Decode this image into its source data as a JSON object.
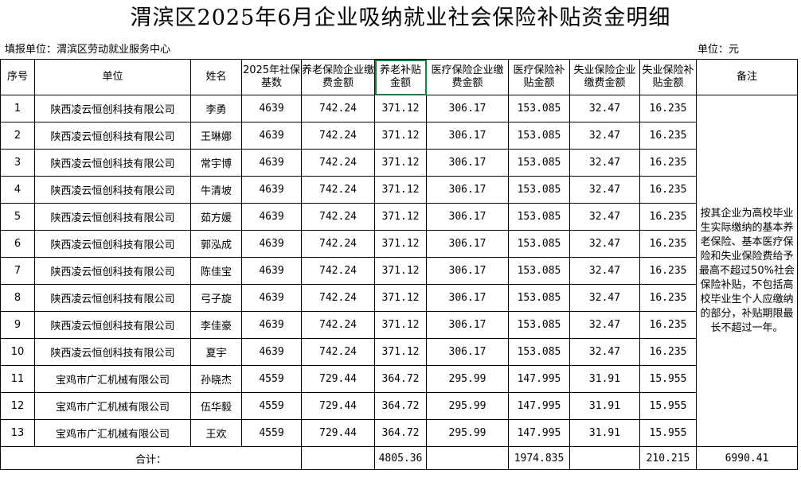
{
  "title": "渭滨区2025年6月企业吸纳就业社会保险补贴资金明细",
  "reporting_unit": "填报单位：渭滨区劳动就业服务中心",
  "unit_label": "单位：元",
  "headers": {
    "seq": "序号",
    "company": "单位",
    "name": "姓名",
    "base": "2025年社保基数",
    "pension_pay": "养老保险企业缴费金额",
    "pension_sub": "养老补贴金额",
    "medical_pay": "医疗保险企业缴费金额",
    "medical_sub": "医疗保险补贴金额",
    "unemp_pay": "失业保险企业缴费金额",
    "unemp_sub": "失业保险补贴金额",
    "remark": "备注"
  },
  "rows": [
    {
      "seq": "1",
      "company": "陕西凌云恒创科技有限公司",
      "name": "李勇",
      "base": "4639",
      "pension_pay": "742.24",
      "pension_sub": "371.12",
      "medical_pay": "306.17",
      "medical_sub": "153.085",
      "unemp_pay": "32.47",
      "unemp_sub": "16.235"
    },
    {
      "seq": "2",
      "company": "陕西凌云恒创科技有限公司",
      "name": "王琳娜",
      "base": "4639",
      "pension_pay": "742.24",
      "pension_sub": "371.12",
      "medical_pay": "306.17",
      "medical_sub": "153.085",
      "unemp_pay": "32.47",
      "unemp_sub": "16.235"
    },
    {
      "seq": "3",
      "company": "陕西凌云恒创科技有限公司",
      "name": "常宇博",
      "base": "4639",
      "pension_pay": "742.24",
      "pension_sub": "371.12",
      "medical_pay": "306.17",
      "medical_sub": "153.085",
      "unemp_pay": "32.47",
      "unemp_sub": "16.235"
    },
    {
      "seq": "4",
      "company": "陕西凌云恒创科技有限公司",
      "name": "牛清坡",
      "base": "4639",
      "pension_pay": "742.24",
      "pension_sub": "371.12",
      "medical_pay": "306.17",
      "medical_sub": "153.085",
      "unemp_pay": "32.47",
      "unemp_sub": "16.235"
    },
    {
      "seq": "5",
      "company": "陕西凌云恒创科技有限公司",
      "name": "茹方媛",
      "base": "4639",
      "pension_pay": "742.24",
      "pension_sub": "371.12",
      "medical_pay": "306.17",
      "medical_sub": "153.085",
      "unemp_pay": "32.47",
      "unemp_sub": "16.235"
    },
    {
      "seq": "6",
      "company": "陕西凌云恒创科技有限公司",
      "name": "郭泓成",
      "base": "4639",
      "pension_pay": "742.24",
      "pension_sub": "371.12",
      "medical_pay": "306.17",
      "medical_sub": "153.085",
      "unemp_pay": "32.47",
      "unemp_sub": "16.235"
    },
    {
      "seq": "7",
      "company": "陕西凌云恒创科技有限公司",
      "name": "陈佳宝",
      "base": "4639",
      "pension_pay": "742.24",
      "pension_sub": "371.12",
      "medical_pay": "306.17",
      "medical_sub": "153.085",
      "unemp_pay": "32.47",
      "unemp_sub": "16.235"
    },
    {
      "seq": "8",
      "company": "陕西凌云恒创科技有限公司",
      "name": "弓子旋",
      "base": "4639",
      "pension_pay": "742.24",
      "pension_sub": "371.12",
      "medical_pay": "306.17",
      "medical_sub": "153.085",
      "unemp_pay": "32.47",
      "unemp_sub": "16.235"
    },
    {
      "seq": "9",
      "company": "陕西凌云恒创科技有限公司",
      "name": "李佳豪",
      "base": "4639",
      "pension_pay": "742.24",
      "pension_sub": "371.12",
      "medical_pay": "306.17",
      "medical_sub": "153.085",
      "unemp_pay": "32.47",
      "unemp_sub": "16.235"
    },
    {
      "seq": "10",
      "company": "陕西凌云恒创科技有限公司",
      "name": "夏宇",
      "base": "4639",
      "pension_pay": "742.24",
      "pension_sub": "371.12",
      "medical_pay": "306.17",
      "medical_sub": "153.085",
      "unemp_pay": "32.47",
      "unemp_sub": "16.235"
    },
    {
      "seq": "11",
      "company": "宝鸡市广汇机械有限公司",
      "name": "孙晓杰",
      "base": "4559",
      "pension_pay": "729.44",
      "pension_sub": "364.72",
      "medical_pay": "295.99",
      "medical_sub": "147.995",
      "unemp_pay": "31.91",
      "unemp_sub": "15.955"
    },
    {
      "seq": "12",
      "company": "宝鸡市广汇机械有限公司",
      "name": "伍华毅",
      "base": "4559",
      "pension_pay": "729.44",
      "pension_sub": "364.72",
      "medical_pay": "295.99",
      "medical_sub": "147.995",
      "unemp_pay": "31.91",
      "unemp_sub": "15.955"
    },
    {
      "seq": "13",
      "company": "宝鸡市广汇机械有限公司",
      "name": "王欢",
      "base": "4559",
      "pension_pay": "729.44",
      "pension_sub": "364.72",
      "medical_pay": "295.99",
      "medical_sub": "147.995",
      "unemp_pay": "31.91",
      "unemp_sub": "15.955"
    }
  ],
  "remark_text": "按其企业为高校毕业生实际缴纳的基本养老保险、基本医疗保险和失业保险费给予最高不超过50%社会保险补贴，不包括高校毕业生个人应缴纳的部分，补贴期限最长不超过一年。",
  "totals": {
    "label": "合计：",
    "pension_sub": "4805.36",
    "medical_sub": "1974.835",
    "unemp_sub": "210.215",
    "grand": "6990.41"
  },
  "selected_cell": "养老补贴金额",
  "colors": {
    "selection": "#1e7b45",
    "grid": "#000000",
    "background": "#ffffff"
  }
}
